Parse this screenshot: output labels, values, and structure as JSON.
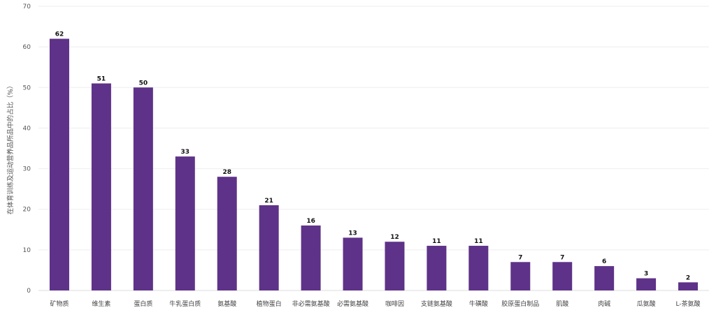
{
  "chart_data": {
    "type": "bar",
    "title": "",
    "xlabel": "",
    "ylabel": "在体育训练及运动营养品所品中的占比（%）",
    "ylim": [
      0,
      70
    ],
    "yticks": [
      0,
      10,
      20,
      30,
      40,
      50,
      60,
      70
    ],
    "grid": true,
    "bar_color": "#5e3288",
    "categories": [
      "矿物质",
      "维生素",
      "蛋白质",
      "牛乳蛋白质",
      "氨基酸",
      "植物蛋白",
      "非必需氨基酸",
      "必需氨基酸",
      "咖啡因",
      "支链氨基酸",
      "牛磺酸",
      "胶原蛋白制品",
      "肌酸",
      "肉碱",
      "瓜氨酸",
      "L-茶氨酸"
    ],
    "values": [
      62,
      51,
      50,
      33,
      28,
      21,
      16,
      13,
      12,
      11,
      11,
      7,
      7,
      6,
      3,
      2
    ]
  }
}
